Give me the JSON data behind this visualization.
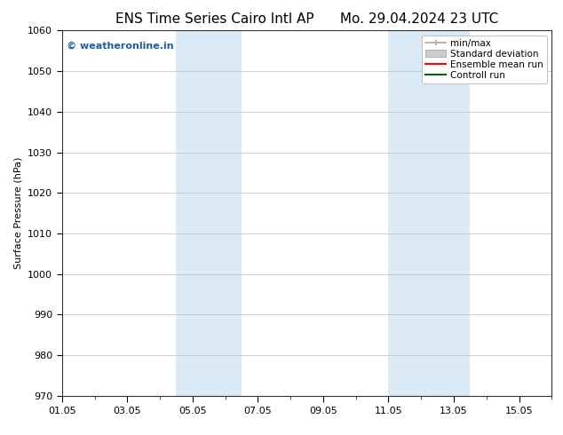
{
  "title_left": "ENS Time Series Cairo Intl AP",
  "title_right": "Mo. 29.04.2024 23 UTC",
  "ylabel": "Surface Pressure (hPa)",
  "ylim": [
    970,
    1060
  ],
  "yticks": [
    970,
    980,
    990,
    1000,
    1010,
    1020,
    1030,
    1040,
    1050,
    1060
  ],
  "xtick_labels": [
    "01.05",
    "03.05",
    "05.05",
    "07.05",
    "09.05",
    "11.05",
    "13.05",
    "15.05"
  ],
  "xtick_positions": [
    0,
    2,
    4,
    6,
    8,
    10,
    12,
    14
  ],
  "xlim": [
    0,
    15
  ],
  "shaded_bands": [
    {
      "x_start": 3.5,
      "x_end": 5.5,
      "color": "#daeaf7"
    },
    {
      "x_start": 10.0,
      "x_end": 12.5,
      "color": "#daeaf7"
    }
  ],
  "watermark_text": "© weatheronline.in",
  "watermark_color": "#1a5fa8",
  "watermark_fontsize": 8,
  "legend_items": [
    {
      "label": "min/max"
    },
    {
      "label": "Standard deviation"
    },
    {
      "label": "Ensemble mean run"
    },
    {
      "label": "Controll run"
    }
  ],
  "bg_color": "#ffffff",
  "grid_color": "#bbbbbb",
  "title_fontsize": 11,
  "axis_fontsize": 8,
  "tick_fontsize": 8,
  "legend_fontsize": 7.5
}
